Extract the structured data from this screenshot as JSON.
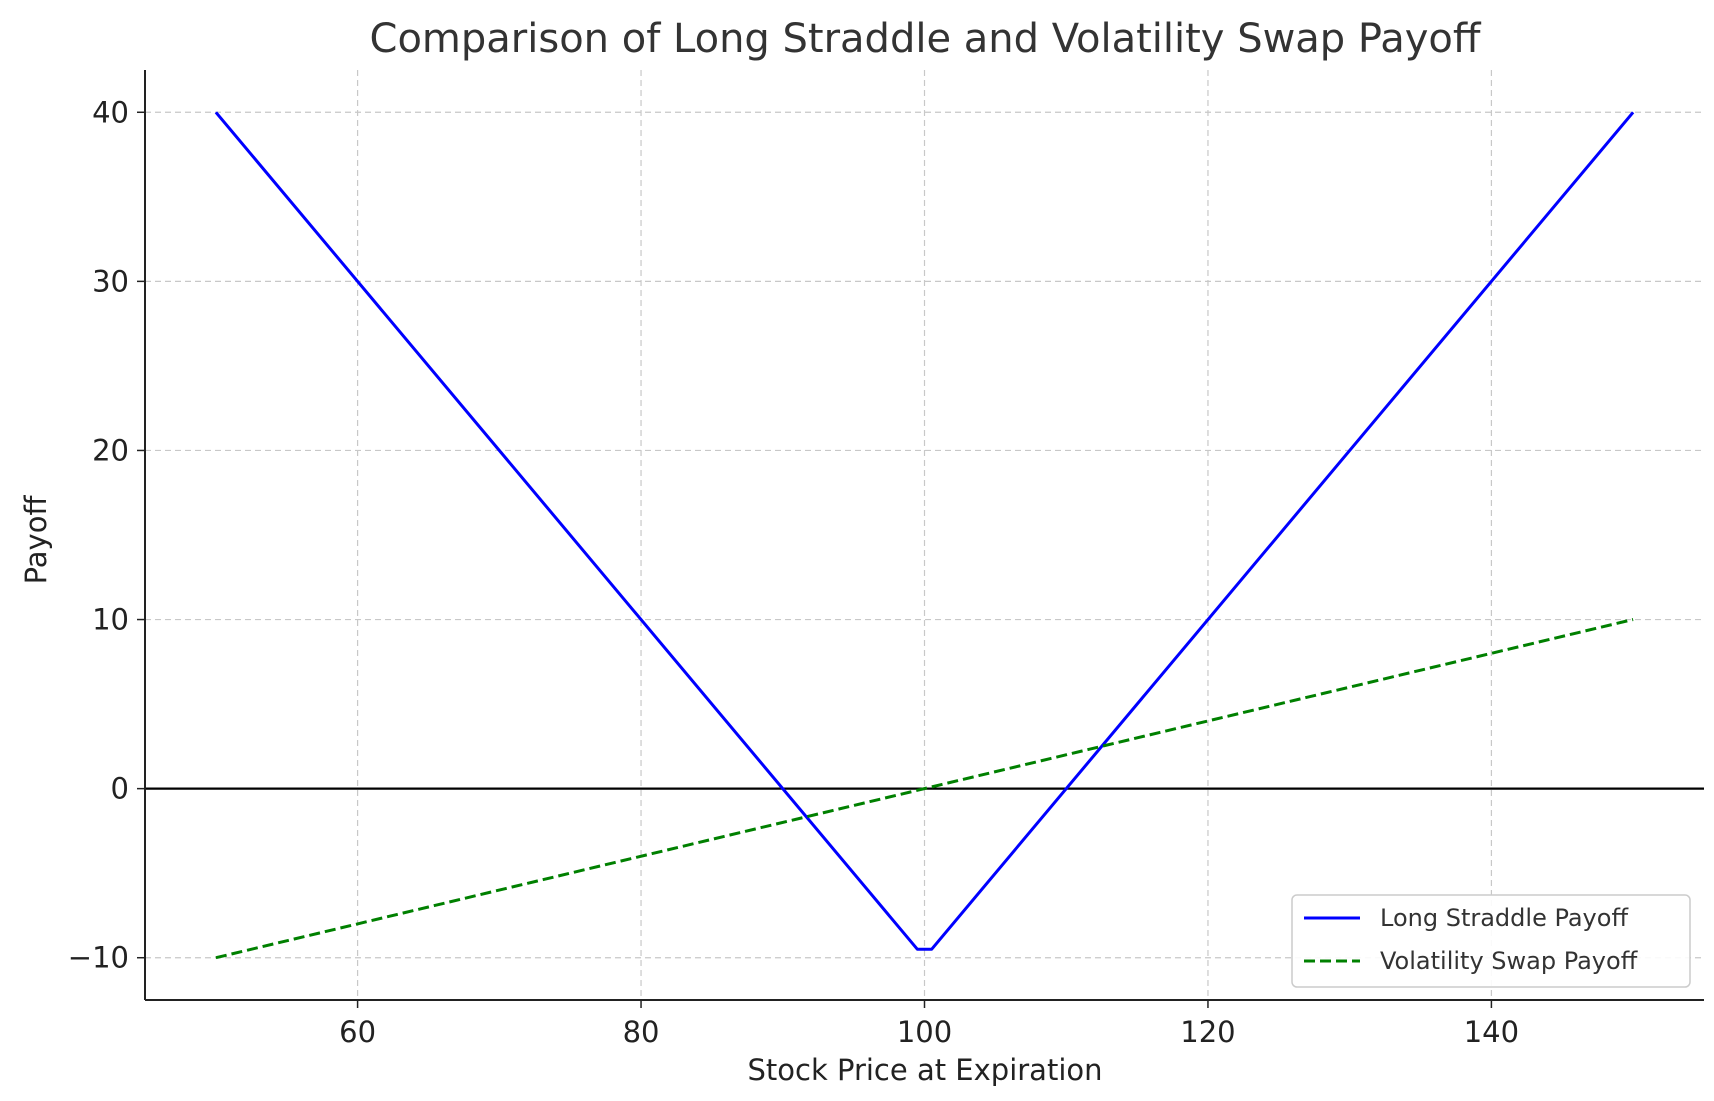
{
  "chart_data": {
    "type": "line",
    "title": "Comparison of Long Straddle and Volatility Swap Payoff",
    "xlabel": "Stock Price at Expiration",
    "ylabel": "Payoff",
    "xlim": [
      45,
      155
    ],
    "ylim": [
      -12.5,
      42.5
    ],
    "xticks": [
      60,
      80,
      100,
      120,
      140
    ],
    "yticks": [
      -10,
      0,
      10,
      20,
      30,
      40
    ],
    "xtick_labels": [
      "60",
      "80",
      "100",
      "120",
      "140"
    ],
    "ytick_labels": [
      "−10",
      "0",
      "10",
      "20",
      "30",
      "40"
    ],
    "grid": true,
    "zero_line": 0,
    "legend_position": "lower-right",
    "series": [
      {
        "name": "Long Straddle Payoff",
        "color": "#0000ff",
        "style": "solid",
        "x": [
          50,
          99.5,
          100.5,
          150
        ],
        "y": [
          40,
          -9.5,
          -9.5,
          40
        ]
      },
      {
        "name": "Volatility Swap Payoff",
        "color": "#008000",
        "style": "dashed",
        "x": [
          50,
          150
        ],
        "y": [
          -10,
          10
        ]
      }
    ]
  }
}
